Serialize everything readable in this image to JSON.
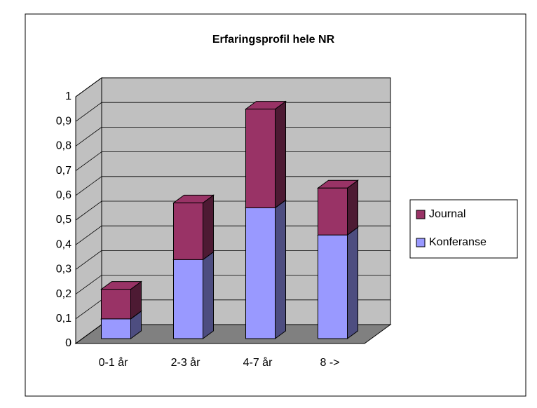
{
  "chart_data": {
    "type": "bar3d_stacked",
    "title": "Erfaringsprofil hele NR",
    "categories": [
      "0-1 år",
      "2-3 år",
      "4-7 år",
      "8 ->"
    ],
    "series": [
      {
        "name": "Konferanse",
        "color": "#9999ff",
        "values": [
          0.08,
          0.32,
          0.53,
          0.42
        ]
      },
      {
        "name": "Journal",
        "color": "#993366",
        "values": [
          0.12,
          0.23,
          0.4,
          0.19
        ]
      }
    ],
    "ylim": [
      0,
      1
    ],
    "yticks": [
      0,
      {
        "value": 0.1,
        "label": "0,1"
      },
      {
        "value": 0.2,
        "label": "0,2"
      },
      {
        "value": 0.3,
        "label": "0,3"
      },
      {
        "value": 0.4,
        "label": "0,4"
      },
      {
        "value": 0.5,
        "label": "0,5"
      },
      {
        "value": 0.6,
        "label": "0,6"
      },
      {
        "value": 0.7,
        "label": "0,7"
      },
      {
        "value": 0.8,
        "label": "0,8"
      },
      {
        "value": 0.9,
        "label": "0,9"
      },
      1
    ],
    "grid": true,
    "legend": "right"
  }
}
